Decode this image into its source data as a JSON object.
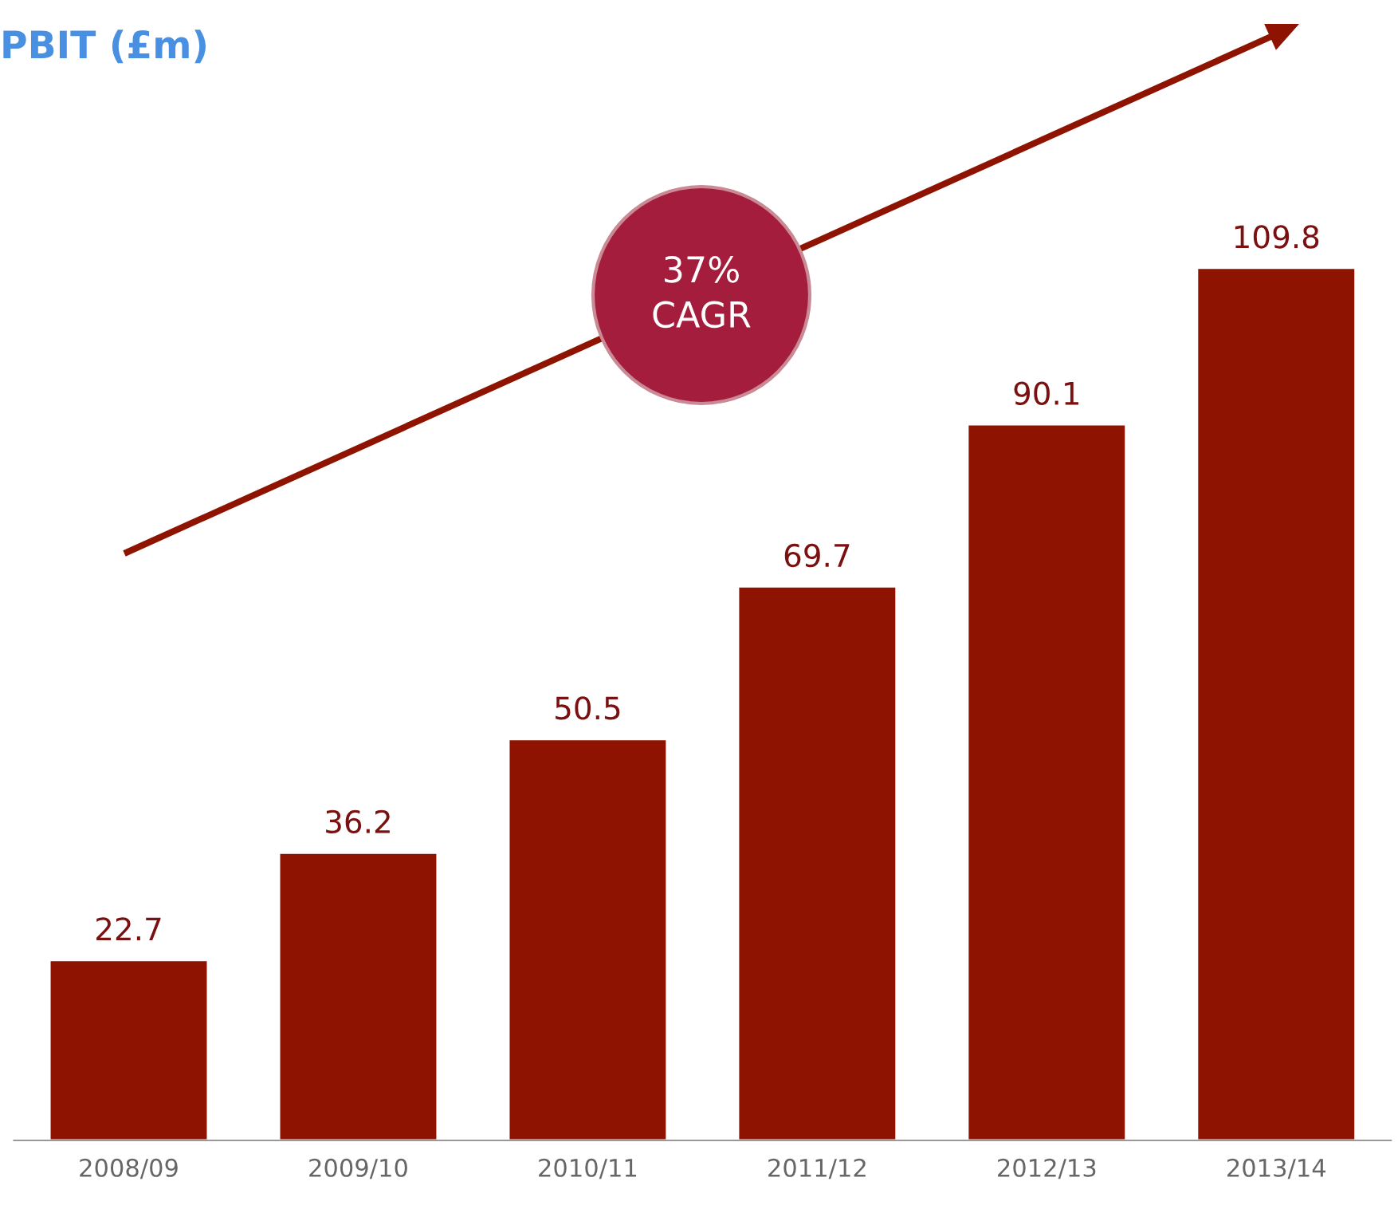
{
  "chart_data": {
    "type": "bar",
    "title": "PBIT (£m)",
    "categories": [
      "2008/09",
      "2009/10",
      "2010/11",
      "2011/12",
      "2012/13",
      "2013/14"
    ],
    "values": [
      22.7,
      36.2,
      50.5,
      69.7,
      90.1,
      109.8
    ],
    "color": "#8e1300",
    "data_labels": true,
    "annotations": [
      "37%\nCAGR"
    ]
  }
}
